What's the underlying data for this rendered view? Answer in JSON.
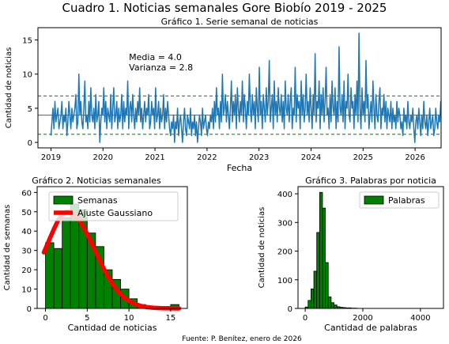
{
  "figure": {
    "suptitle": "Cuadro 1. Noticias semanales Gore Biobío 2019 - 2025",
    "footer": "Fuente: P. Benítez, enero de 2026"
  },
  "colors": {
    "line": "#1f77b4",
    "mean_line": "#2ca02c",
    "bars": "#008000",
    "bar_edge": "#000000",
    "fit": "#ff0000"
  },
  "chart_data": [
    {
      "type": "line",
      "title": "Gráfico 1. Serie semanal de noticias",
      "xlabel": "Fecha",
      "ylabel": "Cantidad de noticias",
      "xlim": [
        2018.75,
        2026.5
      ],
      "ylim": [
        -0.8,
        16.8
      ],
      "x_ticks": [
        2019,
        2020,
        2021,
        2022,
        2023,
        2024,
        2025,
        2026
      ],
      "y_ticks": [
        0,
        5,
        10,
        15
      ],
      "annotations": [
        "Media = 4.0",
        "Varianza = 2.8"
      ],
      "horizontal_lines": [
        {
          "y": 4.0,
          "style": "solid"
        },
        {
          "y": 6.8,
          "style": "dashed"
        },
        {
          "y": 1.2,
          "style": "dashed"
        }
      ],
      "series": [
        {
          "x_start": 2019.0,
          "x_step_weeks": 1,
          "values": [
            1,
            3,
            5,
            2,
            6,
            3,
            4,
            5,
            2,
            3,
            4,
            6,
            2,
            4,
            3,
            5,
            1,
            3,
            6,
            4,
            2,
            5,
            3,
            4,
            5,
            7,
            2,
            3,
            10,
            4,
            6,
            3,
            2,
            5,
            9,
            3,
            4,
            2,
            6,
            3,
            8,
            4,
            3,
            5,
            2,
            7,
            3,
            4,
            6,
            0,
            3,
            5,
            4,
            8,
            3,
            6,
            2,
            5,
            4,
            3,
            7,
            2,
            5,
            8,
            3,
            4,
            6,
            2,
            5,
            3,
            4,
            7,
            2,
            6,
            3,
            5,
            4,
            9,
            2,
            5,
            6,
            3,
            7,
            4,
            2,
            5,
            3,
            6,
            4,
            8,
            3,
            5,
            2,
            4,
            6,
            3,
            5,
            4,
            7,
            2,
            3,
            6,
            4,
            5,
            2,
            8,
            3,
            4,
            6,
            2,
            5,
            3,
            4,
            7,
            2,
            5,
            3,
            6,
            4,
            2,
            1,
            3,
            2,
            4,
            0,
            3,
            2,
            5,
            1,
            3,
            4,
            2,
            0,
            3,
            5,
            2,
            1,
            4,
            3,
            2,
            5,
            1,
            3,
            2,
            4,
            1,
            3,
            0,
            2,
            4,
            3,
            1,
            5,
            2,
            3,
            4,
            2,
            1,
            3,
            2,
            4,
            3,
            5,
            2,
            6,
            3,
            8,
            4,
            5,
            2,
            6,
            3,
            10,
            4,
            5,
            7,
            3,
            6,
            4,
            2,
            5,
            9,
            3,
            6,
            4,
            7,
            2,
            8,
            5,
            3,
            6,
            4,
            9,
            3,
            7,
            5,
            2,
            6,
            4,
            10,
            5,
            3,
            7,
            4,
            6,
            2,
            8,
            5,
            3,
            11,
            4,
            6,
            2,
            7,
            5,
            3,
            8,
            4,
            6,
            12,
            3,
            5,
            7,
            2,
            9,
            4,
            6,
            3,
            8,
            5,
            4,
            7,
            3,
            6,
            2,
            9,
            5,
            4,
            7,
            3,
            6,
            8,
            2,
            5,
            4,
            11,
            3,
            7,
            5,
            6,
            2,
            9,
            4,
            7,
            3,
            5,
            10,
            4,
            6,
            3,
            8,
            5,
            2,
            7,
            4,
            13,
            3,
            6,
            5,
            9,
            2,
            7,
            4,
            8,
            3,
            6,
            11,
            4,
            5,
            2,
            7,
            3,
            9,
            5,
            4,
            8,
            2,
            6,
            3,
            14,
            5,
            4,
            7,
            3,
            9,
            2,
            6,
            5,
            10,
            4,
            3,
            8,
            5,
            6,
            2,
            7,
            4,
            9,
            3,
            16,
            5,
            2,
            8,
            4,
            6,
            3,
            12,
            5,
            7,
            2,
            4,
            6,
            3,
            9,
            5,
            2,
            7,
            4,
            3,
            6,
            8,
            2,
            5,
            4,
            7,
            3,
            6,
            2,
            5,
            4,
            3,
            6,
            2,
            5,
            3,
            4,
            2,
            6,
            3,
            5,
            4,
            2,
            3,
            1,
            5,
            3,
            4,
            2,
            6,
            3,
            2,
            4,
            3,
            5,
            2,
            0,
            3,
            4,
            2,
            5,
            3,
            1,
            4,
            2,
            6,
            3,
            2,
            4,
            1,
            3,
            5,
            2,
            3,
            4,
            1,
            2,
            5,
            3,
            2,
            4,
            3,
            6,
            2,
            4,
            3,
            5,
            2,
            4,
            3,
            6,
            2,
            4,
            7,
            3,
            5,
            2,
            6,
            3,
            4,
            2,
            5,
            3,
            1,
            4,
            2
          ]
        }
      ]
    },
    {
      "type": "bar",
      "title": "Gráfico 2. Noticias semanales",
      "xlabel": "Cantidad de noticias",
      "ylabel": "Cantidad de semanas",
      "xlim": [
        -1,
        17
      ],
      "ylim": [
        0,
        63
      ],
      "x_ticks": [
        0,
        5,
        10,
        15
      ],
      "y_ticks": [
        0,
        10,
        20,
        30,
        40,
        50,
        60
      ],
      "bin_edges": [
        0,
        1,
        2,
        3,
        4,
        5,
        6,
        7,
        8,
        9,
        10,
        11,
        12,
        13,
        14,
        15,
        16
      ],
      "values": [
        34,
        31,
        47,
        54,
        51,
        39,
        32,
        20,
        15,
        10,
        5,
        2,
        1,
        1,
        1,
        2
      ],
      "fit": {
        "name": "Ajuste Gaussiano",
        "x": [
          -0.2,
          0,
          0.5,
          1,
          1.5,
          2,
          2.5,
          3,
          3.5,
          4,
          4.5,
          5,
          5.5,
          6,
          6.5,
          7,
          7.5,
          8,
          8.5,
          9,
          9.5,
          10,
          10.5,
          11,
          11.5,
          12,
          12.5,
          13,
          13.5,
          14,
          14.5,
          15,
          15.5,
          16
        ],
        "y": [
          29,
          31,
          36,
          41,
          45.5,
          48.5,
          50,
          50,
          48.5,
          46,
          42.5,
          38.5,
          34,
          29.5,
          25,
          20.5,
          16.5,
          13,
          10,
          7.5,
          5.5,
          4,
          2.8,
          1.9,
          1.2,
          0.8,
          0.5,
          0.3,
          0.2,
          0.1,
          0.05,
          0.03,
          0.02,
          0.01
        ]
      },
      "legend": {
        "position": "upper right",
        "entries": [
          "Semanas",
          "Ajuste Gaussiano"
        ]
      }
    },
    {
      "type": "bar",
      "title": "Gráfico 3. Palabras por noticia",
      "xlabel": "Cantidad de palabras",
      "ylabel": "Cantidad de noticias",
      "xlim": [
        -250,
        4800
      ],
      "ylim": [
        0,
        425
      ],
      "x_ticks": [
        0,
        2000,
        4000
      ],
      "y_ticks": [
        0,
        100,
        200,
        300,
        400
      ],
      "bin_width": 100,
      "bin_edges": [
        0,
        100,
        200,
        300,
        400,
        500,
        600,
        700,
        800,
        900,
        1000,
        1100,
        1200,
        1300,
        1400,
        1500,
        1600,
        1700,
        1800
      ],
      "values": [
        5,
        28,
        68,
        130,
        265,
        405,
        350,
        160,
        40,
        20,
        12,
        6,
        4,
        3,
        2,
        2,
        1,
        1
      ],
      "legend": {
        "position": "upper right",
        "entries": [
          "Palabras"
        ]
      }
    }
  ]
}
